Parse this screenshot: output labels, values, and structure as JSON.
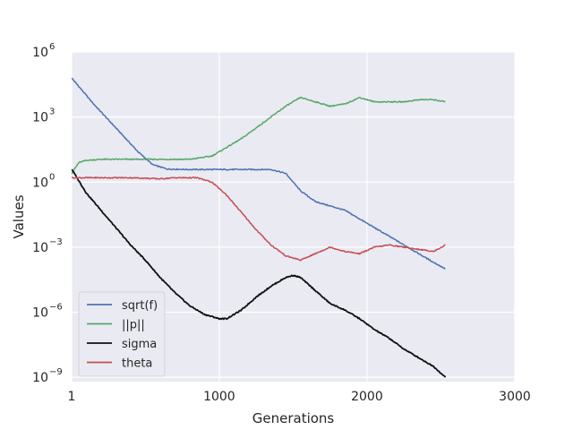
{
  "chart_data": {
    "type": "line",
    "title": "",
    "xlabel": "Generations",
    "ylabel": "Values",
    "xlim": [
      1,
      3000
    ],
    "xticks": [
      {
        "value": 1,
        "label": "1"
      },
      {
        "value": 1000,
        "label": "1000"
      },
      {
        "value": 2000,
        "label": "2000"
      },
      {
        "value": 3000,
        "label": "3000"
      }
    ],
    "yscale": "log",
    "ylim_exponent": [
      -9.2,
      6
    ],
    "yticks": [
      {
        "exp": 6,
        "base": "10",
        "sup": "6"
      },
      {
        "exp": 3,
        "base": "10",
        "sup": "3"
      },
      {
        "exp": 0,
        "base": "10",
        "sup": "0"
      },
      {
        "exp": -3,
        "base": "10",
        "sup": "−3"
      },
      {
        "exp": -6,
        "base": "10",
        "sup": "−6"
      },
      {
        "exp": -9,
        "base": "10",
        "sup": "−9"
      }
    ],
    "grid": true,
    "legend_position": "lower-left",
    "series": [
      {
        "name": "sqrt(f)",
        "color": "#4c72b0",
        "x": [
          1,
          150,
          300,
          450,
          550,
          650,
          800,
          1000,
          1200,
          1350,
          1450,
          1550,
          1650,
          1750,
          1850,
          1950,
          2050,
          2150,
          2250,
          2350,
          2450,
          2530
        ],
        "log10_y": [
          4.8,
          3.6,
          2.5,
          1.4,
          0.8,
          0.6,
          0.58,
          0.58,
          0.58,
          0.58,
          0.4,
          -0.4,
          -0.9,
          -1.1,
          -1.3,
          -1.7,
          -2.1,
          -2.5,
          -2.9,
          -3.3,
          -3.7,
          -4.0
        ]
      },
      {
        "name": "||p||",
        "color": "#55a868",
        "x": [
          1,
          50,
          100,
          200,
          400,
          600,
          800,
          950,
          1050,
          1150,
          1250,
          1350,
          1450,
          1550,
          1650,
          1750,
          1850,
          1950,
          2050,
          2150,
          2250,
          2350,
          2450,
          2530
        ],
        "log10_y": [
          0.4,
          0.9,
          1.0,
          1.05,
          1.05,
          1.05,
          1.05,
          1.2,
          1.6,
          2.0,
          2.5,
          3.0,
          3.5,
          3.9,
          3.7,
          3.5,
          3.6,
          3.9,
          3.7,
          3.7,
          3.7,
          3.8,
          3.8,
          3.7
        ]
      },
      {
        "name": "sigma",
        "color": "#111111",
        "x": [
          1,
          100,
          200,
          300,
          400,
          500,
          600,
          700,
          800,
          900,
          1000,
          1050,
          1150,
          1250,
          1350,
          1450,
          1500,
          1550,
          1650,
          1750,
          1850,
          1950,
          2050,
          2150,
          2250,
          2350,
          2450,
          2530
        ],
        "log10_y": [
          0.6,
          -0.5,
          -1.3,
          -2.1,
          -2.9,
          -3.6,
          -4.4,
          -5.1,
          -5.7,
          -6.1,
          -6.3,
          -6.3,
          -5.9,
          -5.3,
          -4.8,
          -4.4,
          -4.3,
          -4.4,
          -5.0,
          -5.6,
          -5.9,
          -6.3,
          -6.8,
          -7.2,
          -7.7,
          -8.1,
          -8.5,
          -9.0
        ]
      },
      {
        "name": "theta",
        "color": "#c44e52",
        "x": [
          1,
          200,
          400,
          600,
          700,
          850,
          950,
          1050,
          1150,
          1250,
          1350,
          1450,
          1550,
          1650,
          1750,
          1850,
          1950,
          2050,
          2150,
          2250,
          2350,
          2450,
          2530
        ],
        "log10_y": [
          0.2,
          0.2,
          0.2,
          0.15,
          0.2,
          0.2,
          0.0,
          -0.6,
          -1.4,
          -2.2,
          -2.9,
          -3.4,
          -3.6,
          -3.3,
          -3.0,
          -3.2,
          -3.3,
          -3.0,
          -2.9,
          -3.0,
          -3.1,
          -3.2,
          -2.9
        ]
      }
    ]
  }
}
